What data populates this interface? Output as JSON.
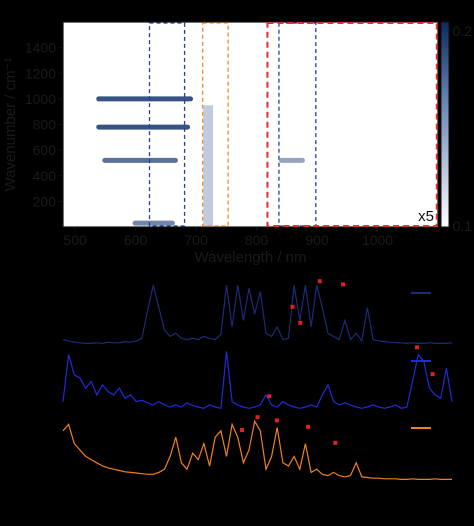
{
  "chart_data": [
    {
      "type": "heatmap",
      "xlabel": "Wavelength / nm",
      "ylabel": "Wavenumber / cm⁻¹",
      "xlim": [
        480,
        1100
      ],
      "ylim": [
        0,
        1600
      ],
      "xticks": [
        500,
        600,
        700,
        800,
        900,
        1000
      ],
      "yticks": [
        200,
        400,
        600,
        800,
        1000,
        1200,
        1400
      ],
      "colorbar": {
        "ticks": [
          "0.1",
          "0.2"
        ]
      },
      "annotation": "x5",
      "magnified_region": {
        "x": [
          818,
          1098
        ],
        "y": [
          0,
          1600
        ],
        "factor": "x5"
      },
      "bands": [
        {
          "x": [
            535,
            695
          ],
          "y": 1000,
          "intensity": 0.85
        },
        {
          "x": [
            535,
            690
          ],
          "y": 780,
          "intensity": 0.85
        },
        {
          "x": [
            545,
            670
          ],
          "y": 520,
          "intensity": 0.7
        },
        {
          "x": [
            837,
            880
          ],
          "y": 520,
          "intensity": 0.45
        },
        {
          "x": [
            595,
            665
          ],
          "y": 30,
          "intensity": 0.6
        }
      ],
      "rectangles": [
        {
          "x": [
            623,
            681
          ],
          "color": "#2a3f8f",
          "style": "dashed"
        },
        {
          "x": [
            711,
            753
          ],
          "color": "#f08a24",
          "style": "dashed"
        },
        {
          "x": [
            837,
            898
          ],
          "color": "#2a3f8f",
          "style": "dashed"
        },
        {
          "x": [
            818,
            1098
          ],
          "color": "#e03030",
          "style": "dashed"
        }
      ]
    },
    {
      "type": "line",
      "series": [
        {
          "color": "#1c2a78",
          "values": [
            0.1,
            0.08,
            0.06,
            0.05,
            0.04,
            0.04,
            0.05,
            0.04,
            0.06,
            0.05,
            0.05,
            0.07,
            0.06,
            0.08,
            0.12,
            0.55,
            0.95,
            0.6,
            0.25,
            0.15,
            0.2,
            0.12,
            0.1,
            0.12,
            0.1,
            0.15,
            0.12,
            0.1,
            0.18,
            0.95,
            0.3,
            0.95,
            0.4,
            0.9,
            0.5,
            0.85,
            0.2,
            0.15,
            0.3,
            0.1,
            0.12,
            0.95,
            0.4,
            0.95,
            0.3,
            0.95,
            0.6,
            0.2,
            0.15,
            0.1,
            0.4,
            0.1,
            0.2,
            0.08,
            0.6,
            0.1,
            0.08,
            0.07,
            0.06,
            0.05,
            0.05,
            0.04,
            0.05,
            0.04,
            0.04,
            0.05,
            0.04,
            0.04,
            0.04,
            0.05
          ]
        },
        {
          "color": "#1f2bd8",
          "values": [
            0.2,
            0.9,
            0.6,
            0.55,
            0.4,
            0.5,
            0.3,
            0.45,
            0.35,
            0.3,
            0.4,
            0.25,
            0.3,
            0.2,
            0.22,
            0.18,
            0.15,
            0.2,
            0.15,
            0.12,
            0.15,
            0.12,
            0.18,
            0.14,
            0.12,
            0.1,
            0.15,
            0.12,
            0.1,
            0.95,
            0.2,
            0.15,
            0.12,
            0.1,
            0.12,
            0.15,
            0.3,
            0.15,
            0.12,
            0.2,
            0.15,
            0.12,
            0.1,
            0.12,
            0.15,
            0.12,
            0.3,
            0.45,
            0.2,
            0.15,
            0.18,
            0.15,
            0.12,
            0.1,
            0.12,
            0.15,
            0.12,
            0.1,
            0.12,
            0.15,
            0.1,
            0.12,
            0.5,
            0.9,
            0.8,
            0.4,
            0.3,
            0.25,
            0.7,
            0.2
          ]
        },
        {
          "color": "#f0801e",
          "values": [
            0.8,
            0.9,
            0.6,
            0.5,
            0.4,
            0.35,
            0.3,
            0.25,
            0.22,
            0.2,
            0.18,
            0.16,
            0.15,
            0.14,
            0.13,
            0.12,
            0.12,
            0.15,
            0.2,
            0.4,
            0.7,
            0.3,
            0.2,
            0.45,
            0.35,
            0.6,
            0.25,
            0.7,
            0.8,
            0.4,
            0.9,
            0.7,
            0.3,
            0.5,
            0.95,
            0.8,
            0.2,
            0.4,
            0.85,
            0.3,
            0.25,
            0.4,
            0.2,
            0.6,
            0.15,
            0.2,
            0.12,
            0.1,
            0.15,
            0.1,
            0.08,
            0.1,
            0.3,
            0.08,
            0.07,
            0.06,
            0.06,
            0.05,
            0.05,
            0.05,
            0.04,
            0.04,
            0.05,
            0.04,
            0.04,
            0.04,
            0.05,
            0.04,
            0.04,
            0.04
          ]
        }
      ],
      "peak_markers": [
        {
          "series": 0,
          "points": [
            [
              0.59,
              0.55
            ],
            [
              0.61,
              0.3
            ],
            [
              0.66,
              0.95
            ],
            [
              0.72,
              0.9
            ]
          ]
        },
        {
          "series": 1,
          "points": [
            [
              0.53,
              0.22
            ],
            [
              0.91,
              0.95
            ],
            [
              0.95,
              0.55
            ]
          ]
        },
        {
          "series": 2,
          "points": [
            [
              0.46,
              0.75
            ],
            [
              0.5,
              0.95
            ],
            [
              0.55,
              0.9
            ],
            [
              0.63,
              0.8
            ],
            [
              0.7,
              0.55
            ]
          ]
        }
      ],
      "legend_lines": [
        {
          "series": 0,
          "color": "#1c2a78"
        },
        {
          "series": 1,
          "color": "#1f2bd8"
        },
        {
          "series": 2,
          "color": "#f0801e"
        }
      ]
    }
  ]
}
